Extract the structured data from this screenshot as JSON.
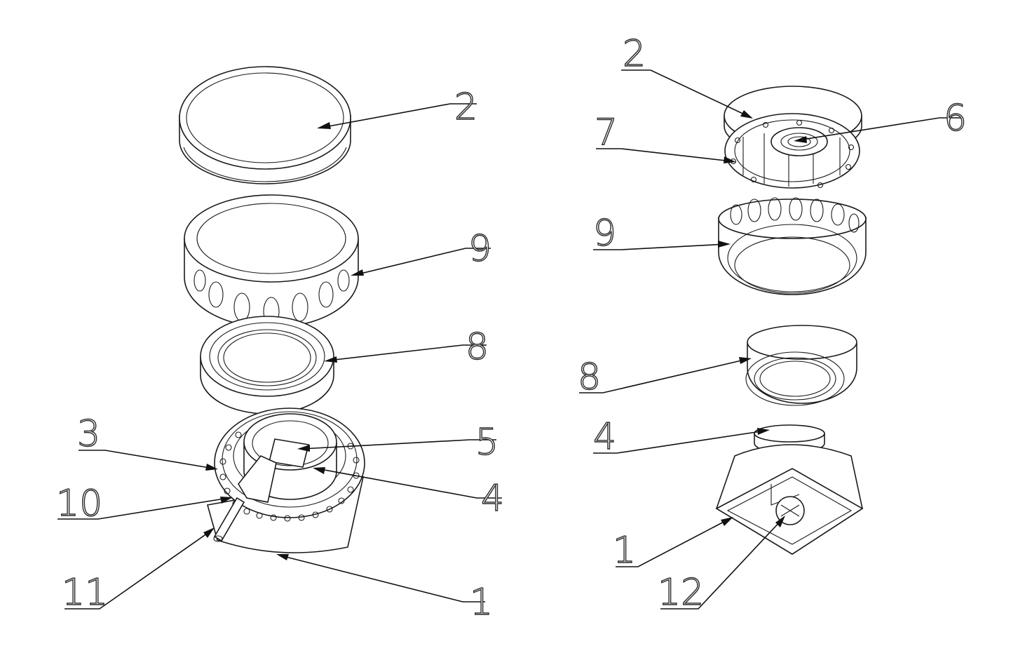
{
  "diagram": {
    "left_view": {
      "callouts": [
        {
          "id": "l-2",
          "label": "2"
        },
        {
          "id": "l-9",
          "label": "9"
        },
        {
          "id": "l-8",
          "label": "8"
        },
        {
          "id": "l-3",
          "label": "3"
        },
        {
          "id": "l-5",
          "label": "5"
        },
        {
          "id": "l-10",
          "label": "10"
        },
        {
          "id": "l-4",
          "label": "4"
        },
        {
          "id": "l-11",
          "label": "11"
        },
        {
          "id": "l-1",
          "label": "1"
        }
      ]
    },
    "right_view": {
      "callouts": [
        {
          "id": "r-2",
          "label": "2"
        },
        {
          "id": "r-6",
          "label": "6"
        },
        {
          "id": "r-7",
          "label": "7"
        },
        {
          "id": "r-9",
          "label": "9"
        },
        {
          "id": "r-8",
          "label": "8"
        },
        {
          "id": "r-4",
          "label": "4"
        },
        {
          "id": "r-1",
          "label": "1"
        },
        {
          "id": "r-12",
          "label": "12"
        }
      ]
    },
    "style": {
      "line_color": "#1a1a1a",
      "background": "#ffffff"
    }
  }
}
